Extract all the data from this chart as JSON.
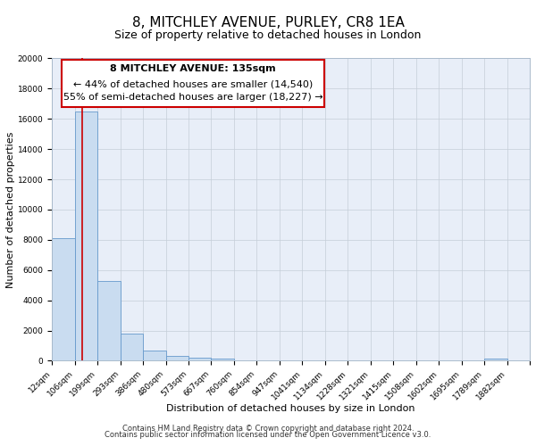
{
  "title": "8, MITCHLEY AVENUE, PURLEY, CR8 1EA",
  "subtitle": "Size of property relative to detached houses in London",
  "xlabel": "Distribution of detached houses by size in London",
  "ylabel": "Number of detached properties",
  "bin_labels": [
    "12sqm",
    "106sqm",
    "199sqm",
    "293sqm",
    "386sqm",
    "480sqm",
    "573sqm",
    "667sqm",
    "760sqm",
    "854sqm",
    "947sqm",
    "1041sqm",
    "1134sqm",
    "1228sqm",
    "1321sqm",
    "1415sqm",
    "1508sqm",
    "1602sqm",
    "1695sqm",
    "1789sqm",
    "1882sqm"
  ],
  "bar_values": [
    8100,
    16500,
    5300,
    1800,
    700,
    300,
    200,
    150,
    0,
    0,
    0,
    0,
    0,
    0,
    0,
    0,
    0,
    0,
    0,
    150,
    0
  ],
  "bar_color": "#c9dcf0",
  "bar_edge_color": "#6699cc",
  "background_color": "#e8eef8",
  "grid_color": "#c5cdd8",
  "ylim": [
    0,
    20000
  ],
  "yticks": [
    0,
    2000,
    4000,
    6000,
    8000,
    10000,
    12000,
    14000,
    16000,
    18000,
    20000
  ],
  "annotation_title": "8 MITCHLEY AVENUE: 135sqm",
  "annotation_line1": "← 44% of detached houses are smaller (14,540)",
  "annotation_line2": "55% of semi-detached houses are larger (18,227) →",
  "footer1": "Contains HM Land Registry data © Crown copyright and database right 2024.",
  "footer2": "Contains public sector information licensed under the Open Government Licence v3.0.",
  "title_fontsize": 11,
  "subtitle_fontsize": 9,
  "xlabel_fontsize": 8,
  "ylabel_fontsize": 8,
  "tick_fontsize": 6.5,
  "ann_title_fontsize": 8,
  "ann_text_fontsize": 8,
  "footer_fontsize": 6
}
